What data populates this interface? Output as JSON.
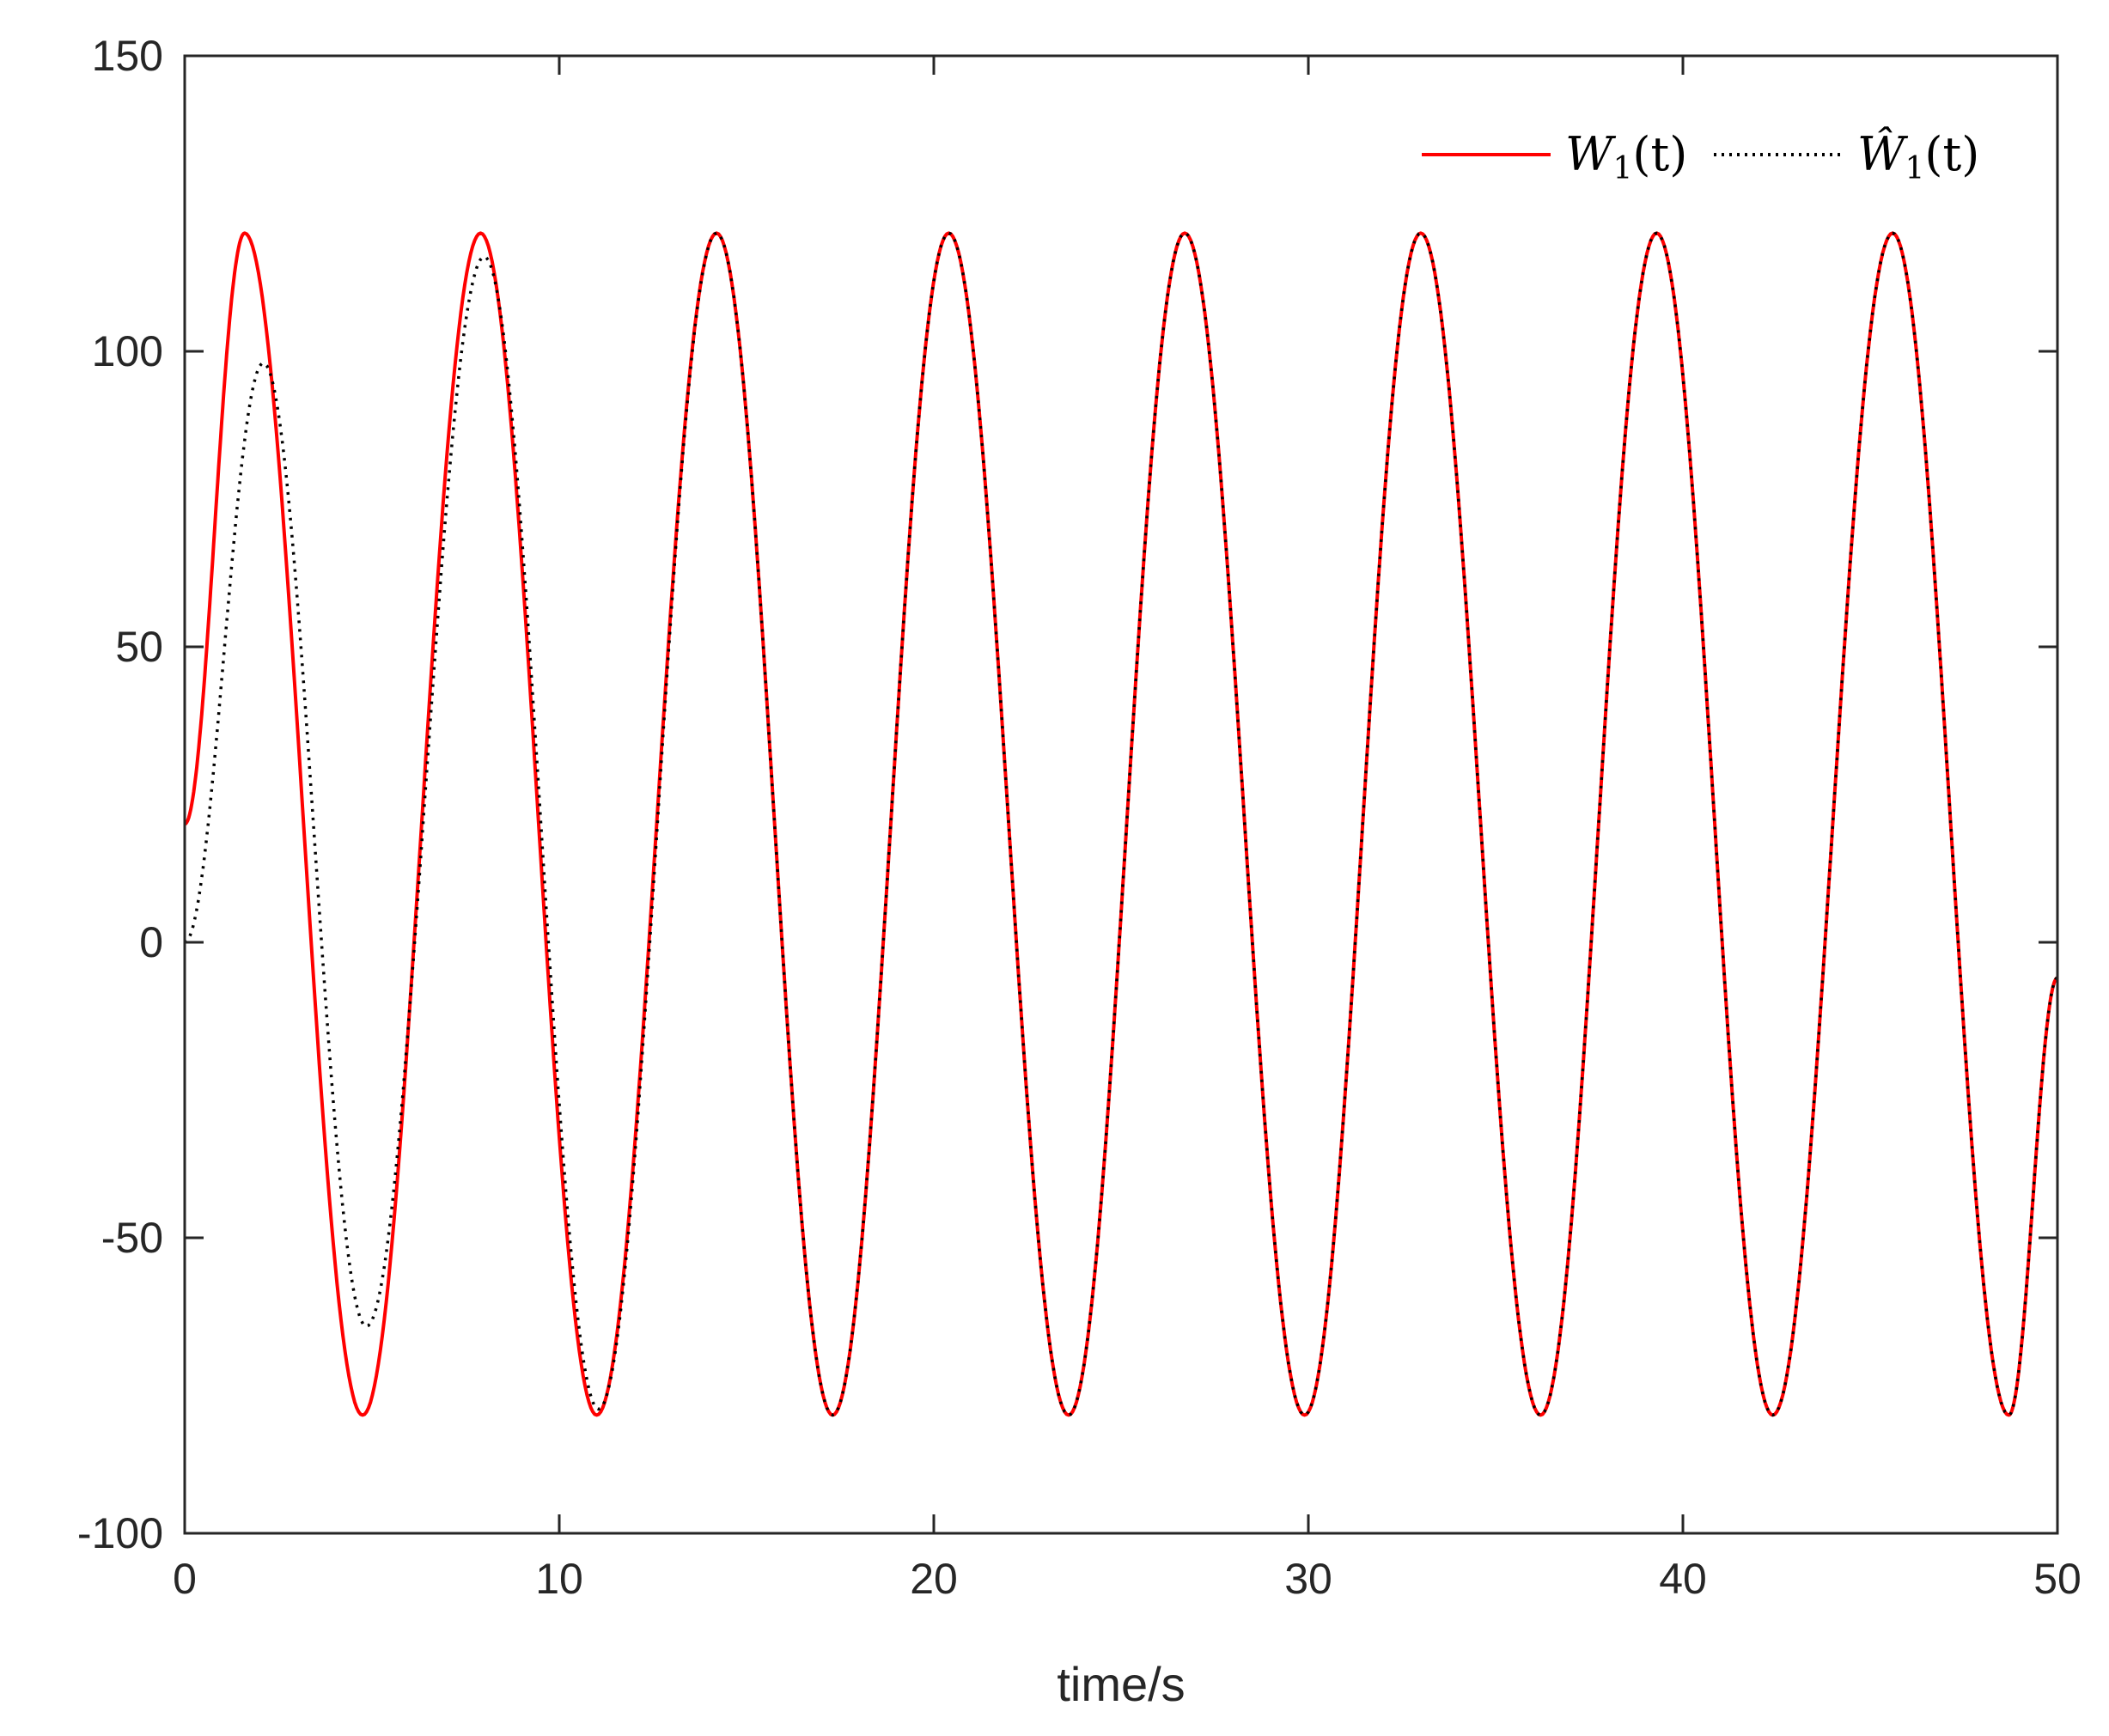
{
  "chart_data": {
    "type": "line",
    "xlabel": "time/s",
    "ylabel": "",
    "xlim": [
      0,
      50
    ],
    "ylim": [
      -100,
      150
    ],
    "xticks": [
      0,
      10,
      20,
      30,
      40,
      50
    ],
    "yticks": [
      -100,
      -50,
      0,
      50,
      100,
      150
    ],
    "xtick_labels": [
      "0",
      "10",
      "20",
      "30",
      "40",
      "50"
    ],
    "ytick_labels": [
      "-100",
      "-50",
      "0",
      "50",
      "100",
      "150"
    ],
    "grid": false,
    "legend_placement": "top-right",
    "series": [
      {
        "name": "W1(t)",
        "legend_label": "W",
        "legend_subscript": "1",
        "legend_args": "(t)",
        "color": "#ff0000",
        "style": "solid",
        "x": [
          0,
          1.6,
          4.75,
          7.9,
          11.0,
          14.2,
          17.3,
          20.4,
          23.6,
          26.7,
          29.9,
          33.0,
          36.2,
          39.3,
          42.4,
          45.6,
          48.7,
          50.0
        ],
        "y": [
          20,
          120,
          -80,
          120,
          -80,
          120,
          -80,
          120,
          -80,
          120,
          -80,
          120,
          -80,
          120,
          -80,
          120,
          -80,
          -6
        ]
      },
      {
        "name": "Ŵ1(t)",
        "legend_label": "Ŵ",
        "legend_subscript": "1",
        "legend_args": "(t)",
        "color": "#000000",
        "style": "dotted",
        "x": [
          0,
          2.1,
          4.85,
          8.0,
          11.05,
          14.2,
          17.3,
          20.4,
          23.6,
          26.7,
          29.9,
          33.0,
          36.2,
          39.3,
          42.4,
          45.6,
          48.7,
          50.0
        ],
        "y": [
          0,
          98,
          -65,
          116,
          -79,
          120,
          -80,
          120,
          -80,
          120,
          -80,
          120,
          -80,
          120,
          -80,
          120,
          -80,
          -6
        ]
      }
    ]
  }
}
